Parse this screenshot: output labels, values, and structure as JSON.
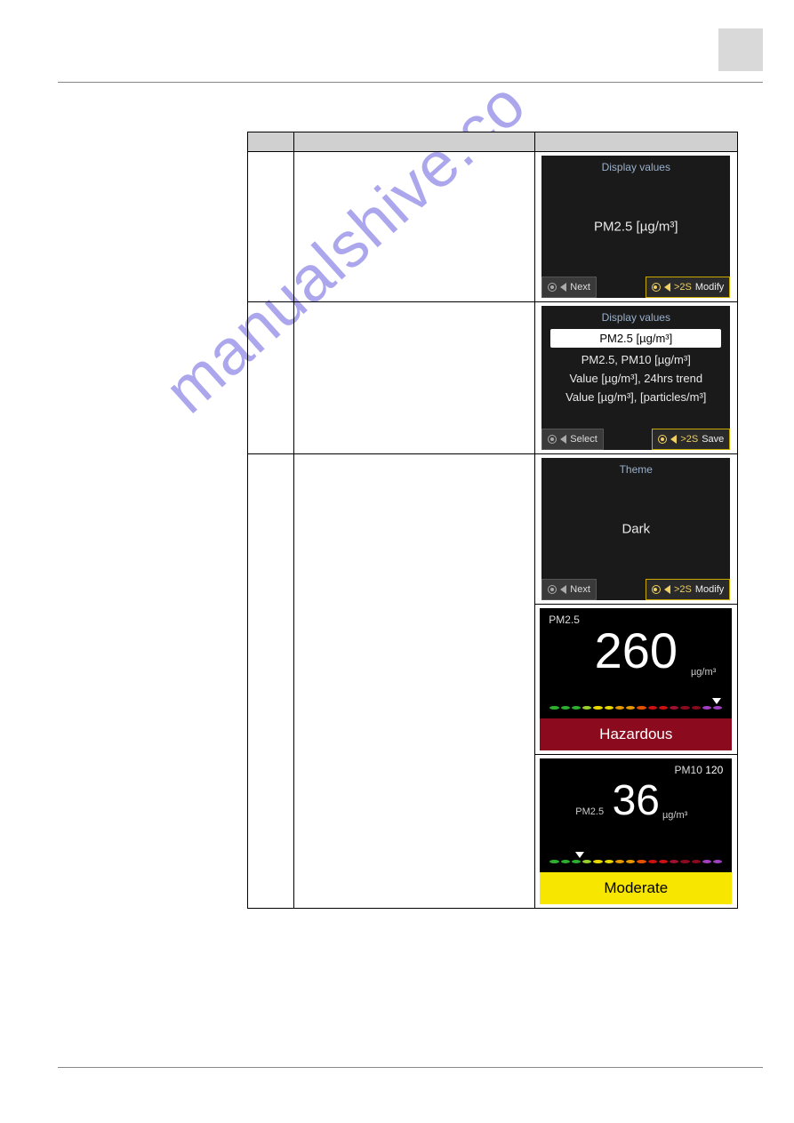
{
  "watermark_text": "manualshive.co",
  "screens": {
    "s1": {
      "title": "Display values",
      "center": "PM2.5 [µg/m³]",
      "left_btn": "Next",
      "right_pre": ">2S",
      "right_btn": "Modify"
    },
    "s2": {
      "title": "Display values",
      "options": [
        "PM2.5 [µg/m³]",
        "PM2.5, PM10 [µg/m³]",
        "Value [µg/m³], 24hrs trend",
        "Value [µg/m³], [particles/m³]"
      ],
      "left_btn": "Select",
      "right_pre": ">2S",
      "right_btn": "Save"
    },
    "s3": {
      "title": "Theme",
      "center": "Dark",
      "left_btn": "Next",
      "right_pre": ">2S",
      "right_btn": "Modify"
    },
    "s4": {
      "top_label": "PM2.5",
      "value": "260",
      "unit": "µg/m³",
      "status": "Hazardous",
      "bar_colors": [
        "#2eae2e",
        "#2eae2e",
        "#2eae2e",
        "#9bcf2e",
        "#e8d800",
        "#e8d800",
        "#e89800",
        "#e89800",
        "#e35000",
        "#d01010",
        "#d01010",
        "#a01030",
        "#8b0a1e",
        "#8b0a1e",
        "#a040c0",
        "#a040c0"
      ],
      "status_bg": "#8b0a1e",
      "status_fg": "#ffffff"
    },
    "s5": {
      "top_right_label": "PM10",
      "top_right_value": "120",
      "mid_label": "PM2.5",
      "value": "36",
      "unit": "µg/m³",
      "status": "Moderate",
      "bar_colors": [
        "#2eae2e",
        "#2eae2e",
        "#2eae2e",
        "#9bcf2e",
        "#e8d800",
        "#e8d800",
        "#e89800",
        "#e89800",
        "#e35000",
        "#d01010",
        "#d01010",
        "#a01030",
        "#8b0a1e",
        "#8b0a1e",
        "#a040c0",
        "#a040c0"
      ],
      "status_bg": "#f7e600",
      "status_fg": "#000000"
    }
  }
}
